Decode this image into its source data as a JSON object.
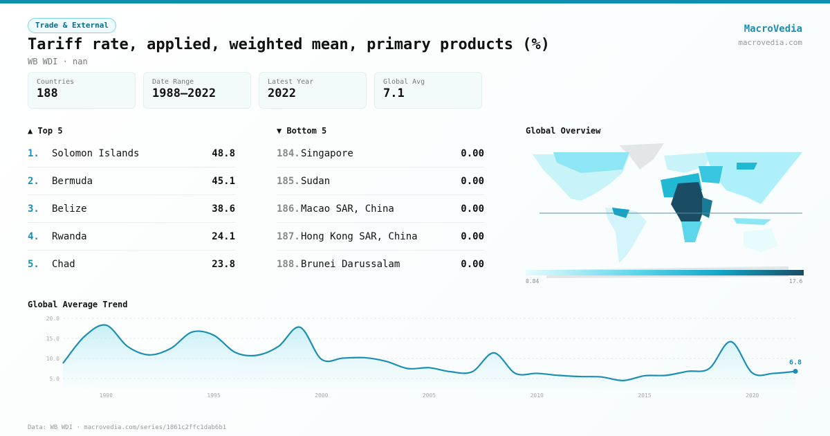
{
  "category_badge": "Trade & External",
  "title": "Tariff rate, applied, weighted mean, primary products (%)",
  "subtitle": "WB WDI · nan",
  "brand": {
    "name": "MacroVedia",
    "url": "macrovedia.com"
  },
  "stats": [
    {
      "label": "Countries",
      "value": "188"
    },
    {
      "label": "Date Range",
      "value": "1988–2022"
    },
    {
      "label": "Latest Year",
      "value": "2022"
    },
    {
      "label": "Global Avg",
      "value": "7.1"
    }
  ],
  "top5": {
    "heading": "▲ Top 5",
    "items": [
      {
        "rank": "1.",
        "name": "Solomon Islands",
        "value": "48.8"
      },
      {
        "rank": "2.",
        "name": "Bermuda",
        "value": "45.1"
      },
      {
        "rank": "3.",
        "name": "Belize",
        "value": "38.6"
      },
      {
        "rank": "4.",
        "name": "Rwanda",
        "value": "24.1"
      },
      {
        "rank": "5.",
        "name": "Chad",
        "value": "23.8"
      }
    ]
  },
  "bottom5": {
    "heading": "▼ Bottom 5",
    "items": [
      {
        "rank": "184.",
        "name": "Singapore",
        "value": "0.00"
      },
      {
        "rank": "185.",
        "name": "Sudan",
        "value": "0.00"
      },
      {
        "rank": "186.",
        "name": "Macao SAR, China",
        "value": "0.00"
      },
      {
        "rank": "187.",
        "name": "Hong Kong SAR, China",
        "value": "0.00"
      },
      {
        "rank": "188.",
        "name": "Brunei Darussalam",
        "value": "0.00"
      }
    ]
  },
  "map": {
    "heading": "Global Overview",
    "legend_min": "0.84",
    "legend_max": "17.6",
    "colors": [
      "#e8fbfd",
      "#12a5c6",
      "#1a4d63"
    ]
  },
  "chart_data": {
    "type": "area",
    "title": "Global Average Trend",
    "x": [
      1988,
      1989,
      1990,
      1991,
      1992,
      1993,
      1994,
      1995,
      1996,
      1997,
      1998,
      1999,
      2000,
      2001,
      2002,
      2003,
      2004,
      2005,
      2006,
      2007,
      2008,
      2009,
      2010,
      2011,
      2012,
      2013,
      2014,
      2015,
      2016,
      2017,
      2018,
      2019,
      2020,
      2021,
      2022
    ],
    "values": [
      8.8,
      15.5,
      18.3,
      13.0,
      10.9,
      12.5,
      16.6,
      15.8,
      11.5,
      10.8,
      13.0,
      17.8,
      9.8,
      10.1,
      10.2,
      9.3,
      7.5,
      7.7,
      6.7,
      6.7,
      11.4,
      6.3,
      6.3,
      5.8,
      5.5,
      5.4,
      4.5,
      5.7,
      5.8,
      6.8,
      7.5,
      14.2,
      6.4,
      6.3,
      6.8
    ],
    "y_ticks": [
      "20.0",
      "15.0",
      "10.0",
      "5.0"
    ],
    "x_ticks": [
      "1990",
      "1995",
      "2000",
      "2005",
      "2010",
      "2015",
      "2020"
    ],
    "last_label": "6.8",
    "ylim": [
      2.5,
      20
    ],
    "color": "#1a8fb3"
  },
  "footer": "Data: WB WDI · macrovedia.com/series/1861c2ffc1dab6b1"
}
